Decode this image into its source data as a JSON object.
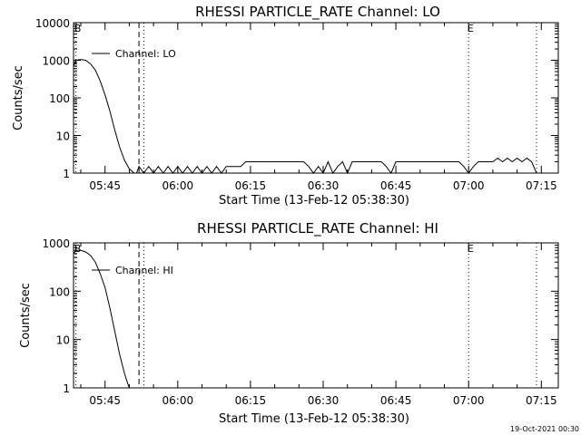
{
  "footer": {
    "timestamp": "19-Oct-2021 00:30"
  },
  "chart_data": [
    {
      "type": "line",
      "title": "RHESSI PARTICLE_RATE Channel: LO",
      "xlabel": "Start Time (13-Feb-12 05:38:30)",
      "ylabel": "Counts/sec",
      "yscale": "log",
      "ylim": [
        1,
        10000
      ],
      "xlim": [
        "05:38:30",
        "07:18:30"
      ],
      "x_ticks": [
        "05:45",
        "06:00",
        "06:15",
        "06:30",
        "06:45",
        "07:00",
        "07:15"
      ],
      "y_ticks": [
        "1",
        "10",
        "100",
        "1000",
        "10000"
      ],
      "legend": {
        "label": "Channel: LO",
        "position": "top-left"
      },
      "markers": [
        {
          "label": "B",
          "time": "05:39",
          "style": "dotted"
        },
        {
          "label": "",
          "time": "05:52",
          "style": "dashed"
        },
        {
          "label": "",
          "time": "05:53",
          "style": "dotted"
        },
        {
          "label": "E",
          "time": "07:00",
          "style": "dotted"
        },
        {
          "label": "",
          "time": "07:14",
          "style": "dotted"
        }
      ],
      "series": [
        {
          "name": "Channel: LO",
          "x": [
            "05:38:30",
            "05:39",
            "05:40",
            "05:41",
            "05:42",
            "05:43",
            "05:44",
            "05:45",
            "05:46",
            "05:47",
            "05:48",
            "05:49",
            "05:50",
            "05:51",
            "05:51:30",
            "05:52",
            "05:53",
            "05:54",
            "05:55",
            "05:56",
            "05:57",
            "05:58",
            "05:59",
            "06:00",
            "06:01",
            "06:02",
            "06:03",
            "06:04",
            "06:05",
            "06:06",
            "06:07",
            "06:08",
            "06:09",
            "06:10",
            "06:11",
            "06:12",
            "06:13",
            "06:14",
            "06:15",
            "06:16",
            "06:18",
            "06:20",
            "06:22",
            "06:24",
            "06:26",
            "06:27",
            "06:28",
            "06:29",
            "06:30",
            "06:31",
            "06:32",
            "06:33",
            "06:34",
            "06:35",
            "06:36",
            "06:38",
            "06:40",
            "06:42",
            "06:43",
            "06:44",
            "06:45",
            "06:46",
            "06:48",
            "06:50",
            "06:52",
            "06:54",
            "06:56",
            "06:58",
            "06:59",
            "07:00",
            "07:01",
            "07:02",
            "07:03",
            "07:04",
            "07:05",
            "07:06",
            "07:07",
            "07:08",
            "07:09",
            "07:10",
            "07:11",
            "07:12",
            "07:13",
            "07:14",
            "07:15"
          ],
          "y": [
            700,
            1000,
            1050,
            1000,
            800,
            550,
            280,
            120,
            45,
            14,
            5,
            2.2,
            1.3,
            1,
            1,
            1.5,
            1,
            1.5,
            1,
            1.5,
            1,
            1.5,
            1,
            1.5,
            1,
            1.5,
            1,
            1.5,
            1,
            1.5,
            1,
            1.5,
            1,
            1.5,
            1.5,
            1.5,
            1.5,
            2,
            2,
            2,
            2,
            2,
            2,
            2,
            2,
            1.5,
            1,
            1.5,
            1,
            2,
            1,
            1.5,
            2,
            1,
            2,
            2,
            2,
            2,
            1.5,
            1,
            2,
            2,
            2,
            2,
            2,
            2,
            2,
            2,
            1.5,
            1,
            1.5,
            2,
            2,
            2,
            2,
            2.5,
            2,
            2.5,
            2,
            2.5,
            2,
            2.5,
            2,
            1,
            1
          ]
        }
      ]
    },
    {
      "type": "line",
      "title": "RHESSI PARTICLE_RATE Channel: HI",
      "xlabel": "Start Time (13-Feb-12 05:38:30)",
      "ylabel": "Counts/sec",
      "yscale": "log",
      "ylim": [
        1,
        1000
      ],
      "xlim": [
        "05:38:30",
        "07:18:30"
      ],
      "x_ticks": [
        "05:45",
        "06:00",
        "06:15",
        "06:30",
        "06:45",
        "07:00",
        "07:15"
      ],
      "y_ticks": [
        "1",
        "10",
        "100",
        "1000"
      ],
      "legend": {
        "label": "Channel: HI",
        "position": "top-left"
      },
      "markers": [
        {
          "label": "B",
          "time": "05:39",
          "style": "dotted"
        },
        {
          "label": "",
          "time": "05:52",
          "style": "dashed"
        },
        {
          "label": "",
          "time": "05:53",
          "style": "dotted"
        },
        {
          "label": "E",
          "time": "07:00",
          "style": "dotted"
        },
        {
          "label": "",
          "time": "07:14",
          "style": "dotted"
        }
      ],
      "series": [
        {
          "name": "Channel: HI",
          "x": [
            "05:38:30",
            "05:39",
            "05:40",
            "05:41",
            "05:42",
            "05:43",
            "05:44",
            "05:45",
            "05:46",
            "05:47",
            "05:48",
            "05:49",
            "05:49:30",
            "05:50"
          ],
          "y": [
            600,
            700,
            700,
            650,
            550,
            400,
            230,
            120,
            45,
            15,
            5,
            2,
            1.4,
            1
          ]
        }
      ]
    }
  ]
}
